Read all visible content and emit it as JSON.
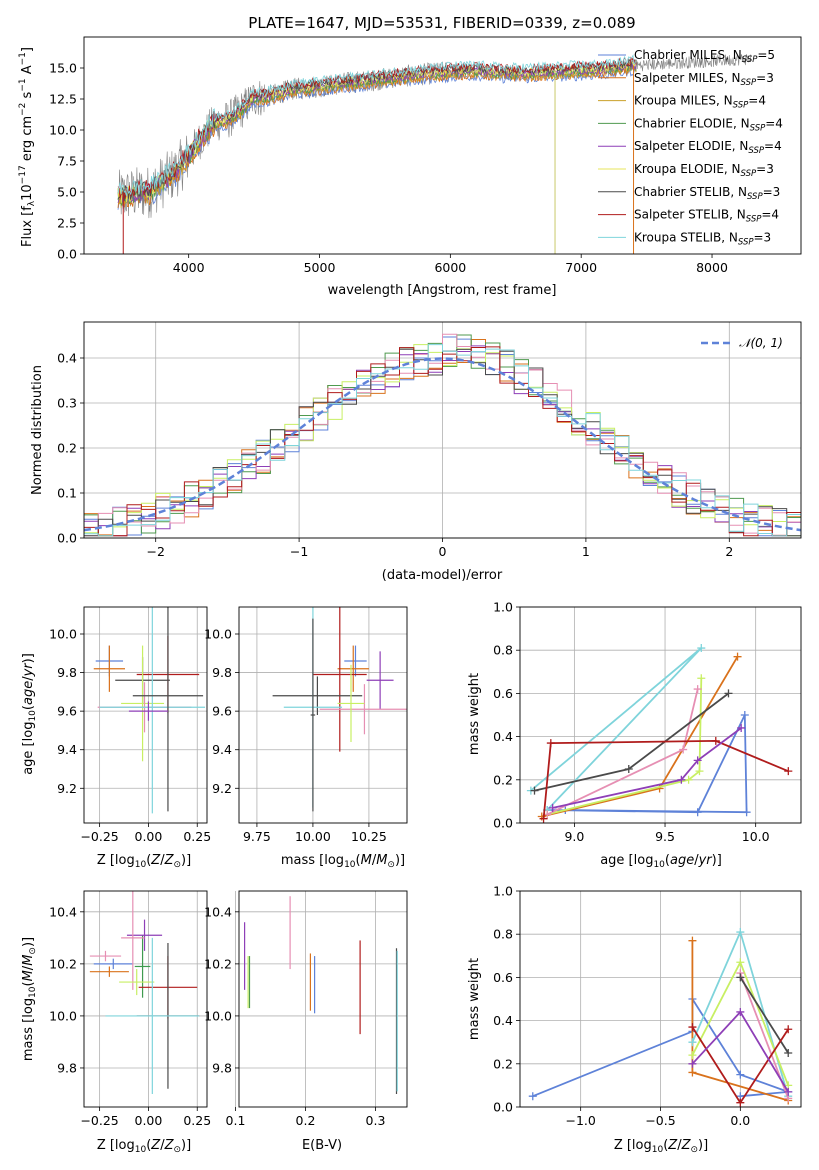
{
  "figure": {
    "title": "PLATE=1647, MJD=53531, FIBERID=0339, z=0.089"
  },
  "colors": {
    "c0": "#5e82d8",
    "c1": "#d9721c",
    "c2": "#c9a02a",
    "c3": "#4f9a4f",
    "c4": "#8e3fb7",
    "c5": "#e7e45b",
    "c6": "#4a4a4a",
    "c7": "#b01c1c",
    "c8": "#7fd4db",
    "c9": "#e68fb3",
    "c10": "#c8ef63",
    "data": "#808080"
  },
  "models": [
    {
      "name": "Chabrier MILES",
      "nssp": "5",
      "color": "#5e82d8"
    },
    {
      "name": "Salpeter MILES",
      "nssp": "3",
      "color": "#d9721c"
    },
    {
      "name": "Kroupa MILES",
      "nssp": "4",
      "color": "#c9a02a"
    },
    {
      "name": "Chabrier ELODIE",
      "nssp": "4",
      "color": "#4f9a4f"
    },
    {
      "name": "Salpeter ELODIE",
      "nssp": "4",
      "color": "#8e3fb7"
    },
    {
      "name": "Kroupa ELODIE",
      "nssp": "3",
      "color": "#e7e45b"
    },
    {
      "name": "Chabrier STELIB",
      "nssp": "3",
      "color": "#4a4a4a"
    },
    {
      "name": "Salpeter STELIB",
      "nssp": "4",
      "color": "#b01c1c"
    },
    {
      "name": "Kroupa STELIB",
      "nssp": "3",
      "color": "#7fd4db"
    }
  ],
  "chart_data": [
    {
      "id": "spectrum",
      "type": "line",
      "xlabel": "wavelength [Angstrom, rest frame]",
      "ylabel": "Flux [fλ10⁻¹⁷ erg cm⁻² s⁻¹ A⁻¹]",
      "xlim": [
        3200,
        8680
      ],
      "ylim": [
        0,
        17.5
      ],
      "xticks": [
        4000,
        5000,
        6000,
        7000,
        8000
      ],
      "yticks": [
        0.0,
        2.5,
        5.0,
        7.5,
        10.0,
        12.5,
        15.0
      ],
      "data_envelope": {
        "x": [
          3460,
          3600,
          3700,
          3800,
          3900,
          4000,
          4100,
          4200,
          4300,
          4400,
          4500,
          4600,
          4800,
          5000,
          5200,
          5400,
          5600,
          5800,
          6000,
          6200,
          6400,
          6600,
          6800,
          7000,
          7200,
          7400
        ],
        "y": [
          4.6,
          4.9,
          5.0,
          5.8,
          6.6,
          7.9,
          9.4,
          10.6,
          10.8,
          11.6,
          12.6,
          12.7,
          13.3,
          13.5,
          13.8,
          14.0,
          14.3,
          14.5,
          14.7,
          14.8,
          14.6,
          14.6,
          14.7,
          14.8,
          14.9,
          15.2
        ]
      },
      "spikes_down": [
        {
          "x": 6800,
          "y_min": 0.0
        },
        {
          "x": 7400,
          "y_min": 0.0
        },
        {
          "x": 3500,
          "y_min": 0.0
        }
      ]
    },
    {
      "id": "residuals",
      "type": "histogram",
      "xlabel": "(data-model)/error",
      "ylabel": "Normed distribution",
      "xlim": [
        -2.5,
        2.5
      ],
      "ylim": [
        0,
        0.48
      ],
      "xticks": [
        -2,
        -1,
        0,
        1,
        2
      ],
      "yticks": [
        0.0,
        0.1,
        0.2,
        0.3,
        0.4
      ],
      "legend": "$\\mathcal{N}(0,1)$",
      "gaussian": {
        "mean": 0,
        "sigma": 1
      }
    },
    {
      "id": "age-vs-Z",
      "type": "errorbar",
      "xlabel": "Z [log10(Z/Z⊙)]",
      "ylabel": "age [log10(age/yr)]",
      "xlim": [
        -0.33,
        0.3
      ],
      "ylim": [
        9.02,
        10.14
      ],
      "xticks": [
        -0.25,
        0.0,
        0.25
      ],
      "yticks": [
        9.2,
        9.4,
        9.6,
        9.8,
        10.0
      ],
      "points": [
        {
          "color": "#5e82d8",
          "x": -0.2,
          "xerr": 0.07,
          "y": 9.86,
          "yerr": 0.08
        },
        {
          "color": "#d9721c",
          "x": -0.2,
          "xerr": 0.08,
          "y": 9.82,
          "yerr": 0.12
        },
        {
          "color": "#4a4a4a",
          "x": -0.03,
          "xerr": 0.14,
          "y": 9.76,
          "yerr": 0.12
        },
        {
          "color": "#b01c1c",
          "x": 0.1,
          "xerr": 0.16,
          "y": 9.79,
          "yerr": 0.2
        },
        {
          "color": "#c8ef63",
          "x": -0.03,
          "xerr": 0.11,
          "y": 9.64,
          "yerr": 0.3
        },
        {
          "color": "#e68fb3",
          "x": -0.02,
          "xerr": 0.24,
          "y": 9.62,
          "yerr": 0.13
        },
        {
          "color": "#7fd4db",
          "x": 0.02,
          "xerr": 0.27,
          "y": 9.62,
          "yerr": 0.55
        },
        {
          "color": "#4a4a4a",
          "x": 0.1,
          "xerr": 0.18,
          "y": 9.68,
          "yerr": 0.6
        },
        {
          "color": "#8e3fb7",
          "x": 0.0,
          "xerr": 0.1,
          "y": 9.6,
          "yerr": 0.05
        }
      ]
    },
    {
      "id": "age-vs-mass",
      "type": "errorbar",
      "xlabel": "mass [log10(M/M⊙)]",
      "xlim": [
        9.67,
        10.42
      ],
      "ylim": [
        9.02,
        10.14
      ],
      "xticks": [
        9.75,
        10.0,
        10.25
      ],
      "xticklabels": [
        "9.75",
        "10.00",
        "10.25"
      ],
      "yticks": [
        9.2,
        9.4,
        9.6,
        9.8,
        10.0
      ],
      "points": [
        {
          "color": "#5e82d8",
          "x": 10.19,
          "xerr": 0.05,
          "y": 9.86,
          "yerr": 0.08
        },
        {
          "color": "#d9721c",
          "x": 10.18,
          "xerr": 0.07,
          "y": 9.82,
          "yerr": 0.12
        },
        {
          "color": "#8e3fb7",
          "x": 10.3,
          "xerr": 0.06,
          "y": 9.76,
          "yerr": 0.15
        },
        {
          "color": "#b01c1c",
          "x": 10.12,
          "xerr": 0.12,
          "y": 9.79,
          "yerr": 0.4
        },
        {
          "color": "#4a4a4a",
          "x": 10.02,
          "xerr": 0.2,
          "y": 9.68,
          "yerr": 0.1
        },
        {
          "color": "#e68fb3",
          "x": 10.23,
          "xerr": 0.2,
          "y": 9.61,
          "yerr": 0.13
        },
        {
          "color": "#7fd4db",
          "x": 10.0,
          "xerr": 0.13,
          "y": 9.62,
          "yerr": 0.52
        },
        {
          "color": "#c8ef63",
          "x": 10.17,
          "xerr": 0.06,
          "y": 9.64,
          "yerr": 0.2
        },
        {
          "color": "#4a4a4a",
          "x": 10.0,
          "xerr": 0.01,
          "y": 9.58,
          "yerr": 0.5
        }
      ]
    },
    {
      "id": "massweight-vs-age",
      "type": "line",
      "xlabel": "age [log10(age/yr)]",
      "ylabel": "mass weight",
      "xlim": [
        8.7,
        10.25
      ],
      "ylim": [
        0,
        1
      ],
      "xticks": [
        9.0,
        9.5,
        10.0
      ],
      "yticks": [
        0.0,
        0.2,
        0.4,
        0.6,
        0.8,
        1.0
      ],
      "series": [
        {
          "color": "#5e82d8",
          "x": [
            8.85,
            9.68,
            9.94,
            9.95,
            8.95
          ],
          "y": [
            0.06,
            0.05,
            0.5,
            0.05,
            0.06
          ]
        },
        {
          "color": "#d9721c",
          "x": [
            8.82,
            9.47,
            9.9
          ],
          "y": [
            0.03,
            0.16,
            0.77
          ]
        },
        {
          "color": "#7fd4db",
          "x": [
            8.76,
            9.7,
            8.85
          ],
          "y": [
            0.15,
            0.81,
            0.06
          ]
        },
        {
          "color": "#c8ef63",
          "x": [
            8.85,
            9.63,
            9.69,
            9.7
          ],
          "y": [
            0.04,
            0.2,
            0.24,
            0.67
          ]
        },
        {
          "color": "#e68fb3",
          "x": [
            8.85,
            9.6,
            9.68
          ],
          "y": [
            0.04,
            0.34,
            0.62
          ]
        },
        {
          "color": "#4a4a4a",
          "x": [
            8.78,
            9.3,
            9.85
          ],
          "y": [
            0.15,
            0.25,
            0.6
          ]
        },
        {
          "color": "#b01c1c",
          "x": [
            8.83,
            8.87,
            9.78,
            10.18
          ],
          "y": [
            0.02,
            0.37,
            0.38,
            0.24
          ]
        },
        {
          "color": "#8e3fb7",
          "x": [
            8.88,
            9.59,
            9.68,
            9.92
          ],
          "y": [
            0.07,
            0.2,
            0.29,
            0.44
          ]
        }
      ]
    },
    {
      "id": "mass-vs-Z",
      "type": "errorbar",
      "xlabel": "Z [log10(Z/Z⊙)]",
      "ylabel": "mass [log10(M/M⊙)]",
      "xlim": [
        -0.33,
        0.3
      ],
      "ylim": [
        9.65,
        10.48
      ],
      "xticks": [
        -0.25,
        0.0,
        0.25
      ],
      "yticks": [
        9.8,
        10.0,
        10.2,
        10.4
      ],
      "points": [
        {
          "color": "#e68fb3",
          "x": -0.22,
          "xerr": 0.08,
          "y": 10.23,
          "yerr": 0.02
        },
        {
          "color": "#5e82d8",
          "x": -0.18,
          "xerr": 0.1,
          "y": 10.2,
          "yerr": 0.02
        },
        {
          "color": "#d9721c",
          "x": -0.2,
          "xerr": 0.1,
          "y": 10.17,
          "yerr": 0.02
        },
        {
          "color": "#3f9a4f",
          "x": -0.03,
          "xerr": 0.04,
          "y": 10.19,
          "yerr": 0.12
        },
        {
          "color": "#8e3fb7",
          "x": -0.02,
          "xerr": 0.09,
          "y": 10.31,
          "yerr": 0.06
        },
        {
          "color": "#e68fb3",
          "x": -0.08,
          "xerr": 0.06,
          "y": 10.3,
          "yerr": 0.2
        },
        {
          "color": "#c8ef63",
          "x": -0.06,
          "xerr": 0.09,
          "y": 10.13,
          "yerr": 0.05
        },
        {
          "color": "#b01c1c",
          "x": 0.1,
          "xerr": 0.15,
          "y": 10.11,
          "yerr": 0.12
        },
        {
          "color": "#4a4a4a",
          "x": 0.1,
          "xerr": 0.16,
          "y": 10.0,
          "yerr": 0.28
        },
        {
          "color": "#7fd4db",
          "x": 0.02,
          "xerr": 0.24,
          "y": 10.0,
          "yerr": 0.3
        }
      ]
    },
    {
      "id": "mass-vs-EBV",
      "type": "errorbar",
      "xlabel": "E(B-V)",
      "xlim": [
        0.105,
        0.345
      ],
      "ylim": [
        9.65,
        10.48
      ],
      "xticks": [
        0.1,
        0.2,
        0.3
      ],
      "yticks": [
        9.8,
        10.0,
        10.2,
        10.4
      ],
      "points": [
        {
          "color": "#8e3fb7",
          "x": 0.113,
          "y": 10.23,
          "yerr": 0.13
        },
        {
          "color": "#c8ef63",
          "x": 0.118,
          "y": 10.13,
          "yerr": 0.1
        },
        {
          "color": "#4f9a4f",
          "x": 0.12,
          "y": 10.13,
          "yerr": 0.1
        },
        {
          "color": "#e68fb3",
          "x": 0.178,
          "y": 10.32,
          "yerr": 0.14
        },
        {
          "color": "#d9721c",
          "x": 0.207,
          "y": 10.13,
          "yerr": 0.11
        },
        {
          "color": "#5e82d8",
          "x": 0.213,
          "y": 10.12,
          "yerr": 0.11
        },
        {
          "color": "#b01c1c",
          "x": 0.278,
          "y": 10.11,
          "yerr": 0.18
        },
        {
          "color": "#4a4a4a",
          "x": 0.33,
          "y": 9.98,
          "yerr": 0.28
        },
        {
          "color": "#7fd4db",
          "x": 0.331,
          "y": 9.98,
          "yerr": 0.27
        }
      ]
    },
    {
      "id": "massweight-vs-Z",
      "type": "line",
      "xlabel": "Z [log10(Z/Z⊙)]",
      "ylabel": "mass weight",
      "xlim": [
        -1.38,
        0.38
      ],
      "ylim": [
        0,
        1
      ],
      "xticks": [
        -1.0,
        -0.5,
        0.0
      ],
      "yticks": [
        0.0,
        0.2,
        0.4,
        0.6,
        0.8,
        1.0
      ],
      "series": [
        {
          "color": "#5e82d8",
          "x": [
            -1.3,
            -0.3,
            -0.3,
            0.0,
            0.3,
            0.0
          ],
          "y": [
            0.05,
            0.35,
            0.5,
            0.15,
            0.07,
            0.05
          ]
        },
        {
          "color": "#d9721c",
          "x": [
            -0.3,
            -0.3,
            0.3
          ],
          "y": [
            0.77,
            0.16,
            0.03
          ]
        },
        {
          "color": "#7fd4db",
          "x": [
            -0.3,
            0.0,
            0.3
          ],
          "y": [
            0.3,
            0.81,
            0.05
          ]
        },
        {
          "color": "#c8ef63",
          "x": [
            -0.3,
            0.0,
            0.3
          ],
          "y": [
            0.24,
            0.67,
            0.1
          ]
        },
        {
          "color": "#e68fb3",
          "x": [
            0.0,
            0.3
          ],
          "y": [
            0.62,
            0.04
          ]
        },
        {
          "color": "#4a4a4a",
          "x": [
            0.0,
            0.3
          ],
          "y": [
            0.6,
            0.25
          ]
        },
        {
          "color": "#b01c1c",
          "x": [
            -0.3,
            0.0,
            0.3
          ],
          "y": [
            0.37,
            0.02,
            0.36
          ]
        },
        {
          "color": "#8e3fb7",
          "x": [
            -0.3,
            0.0,
            0.3
          ],
          "y": [
            0.2,
            0.44,
            0.07
          ]
        }
      ]
    }
  ]
}
